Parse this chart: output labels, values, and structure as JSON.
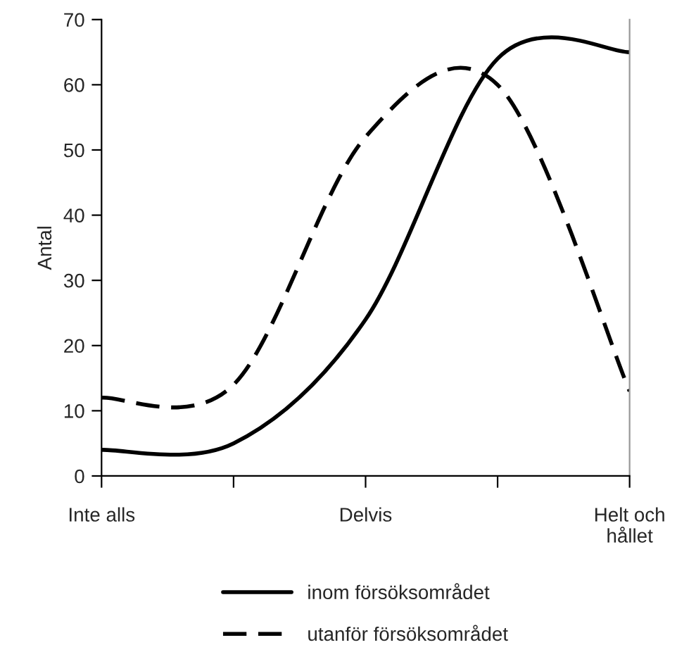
{
  "chart_data": {
    "type": "line",
    "ylabel": "Antal",
    "categories": [
      "Inte alls",
      null,
      "Delvis",
      null,
      "Helt och\nhållet"
    ],
    "series": [
      {
        "name": "inom försöksområdet",
        "color": "#000000",
        "line_style": "solid",
        "values": [
          4,
          5,
          24,
          64,
          65
        ]
      },
      {
        "name": "utanför försöksområdet",
        "color": "#000000",
        "line_style": "dashed",
        "values": [
          12,
          14,
          52,
          60,
          13
        ]
      }
    ],
    "ylim": [
      0,
      70
    ],
    "yticks": [
      0,
      10,
      20,
      30,
      40,
      50,
      60,
      70
    ],
    "grid": false,
    "legend": "bottom",
    "marker": "none"
  }
}
